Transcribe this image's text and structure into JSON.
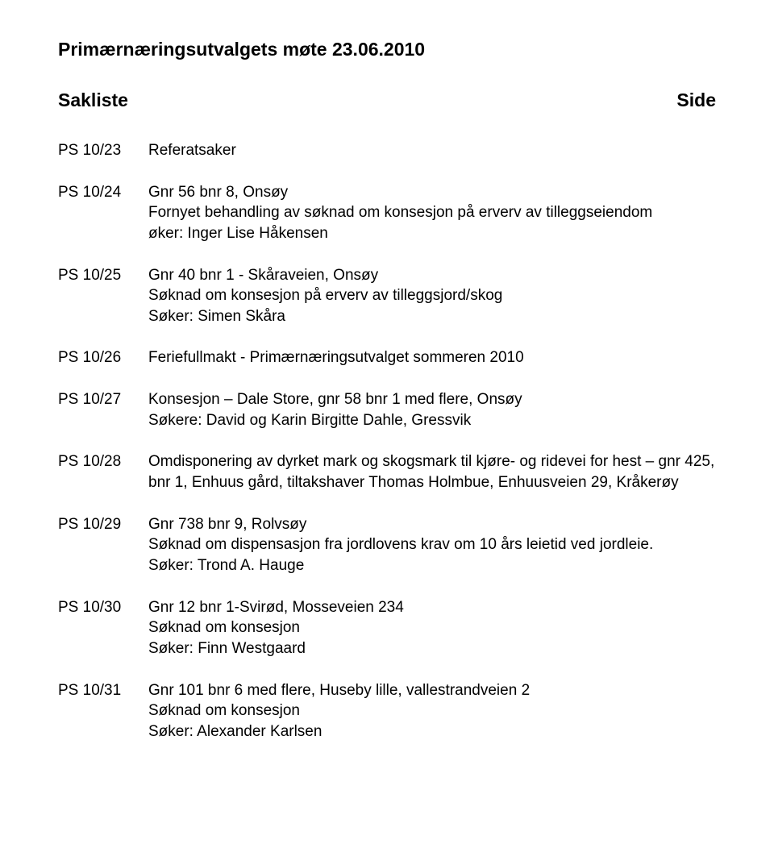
{
  "title": "Primærnæringsutvalgets møte 23.06.2010",
  "sakliste_label": "Sakliste",
  "side_label": "Side",
  "items": [
    {
      "id": "PS 10/23",
      "lines": [
        "Referatsaker"
      ]
    },
    {
      "id": "PS 10/24",
      "lines": [
        "Gnr 56 bnr 8, Onsøy",
        "Fornyet behandling av søknad om konsesjon på erverv av tilleggseiendom",
        "øker: Inger Lise Håkensen"
      ]
    },
    {
      "id": "PS 10/25",
      "lines": [
        "Gnr 40 bnr 1 - Skåraveien, Onsøy",
        "Søknad om konsesjon på erverv av tilleggsjord/skog",
        "Søker: Simen Skåra"
      ]
    },
    {
      "id": "PS 10/26",
      "lines": [
        "Feriefullmakt - Primærnæringsutvalget sommeren 2010"
      ]
    },
    {
      "id": "PS 10/27",
      "lines": [
        "Konsesjon – Dale Store, gnr 58 bnr 1 med flere, Onsøy",
        "Søkere: David og Karin Birgitte Dahle, Gressvik"
      ]
    },
    {
      "id": "PS 10/28",
      "lines": [
        "Omdisponering av dyrket mark og skogsmark til kjøre- og ridevei for hest – gnr 425, bnr 1, Enhuus gård, tiltakshaver Thomas Holmbue, Enhuusveien 29, Kråkerøy"
      ]
    },
    {
      "id": "PS 10/29",
      "lines": [
        "Gnr 738 bnr 9, Rolvsøy",
        "Søknad om dispensasjon fra jordlovens krav om 10 års leietid ved jordleie.",
        "Søker: Trond A. Hauge"
      ]
    },
    {
      "id": "PS 10/30",
      "lines": [
        "Gnr 12 bnr 1-Svirød, Mosseveien 234",
        "Søknad om konsesjon",
        "Søker: Finn Westgaard"
      ]
    },
    {
      "id": "PS 10/31",
      "lines": [
        "Gnr 101 bnr 6 med flere, Huseby lille, vallestrandveien 2",
        "Søknad om konsesjon",
        "Søker: Alexander Karlsen"
      ]
    }
  ]
}
